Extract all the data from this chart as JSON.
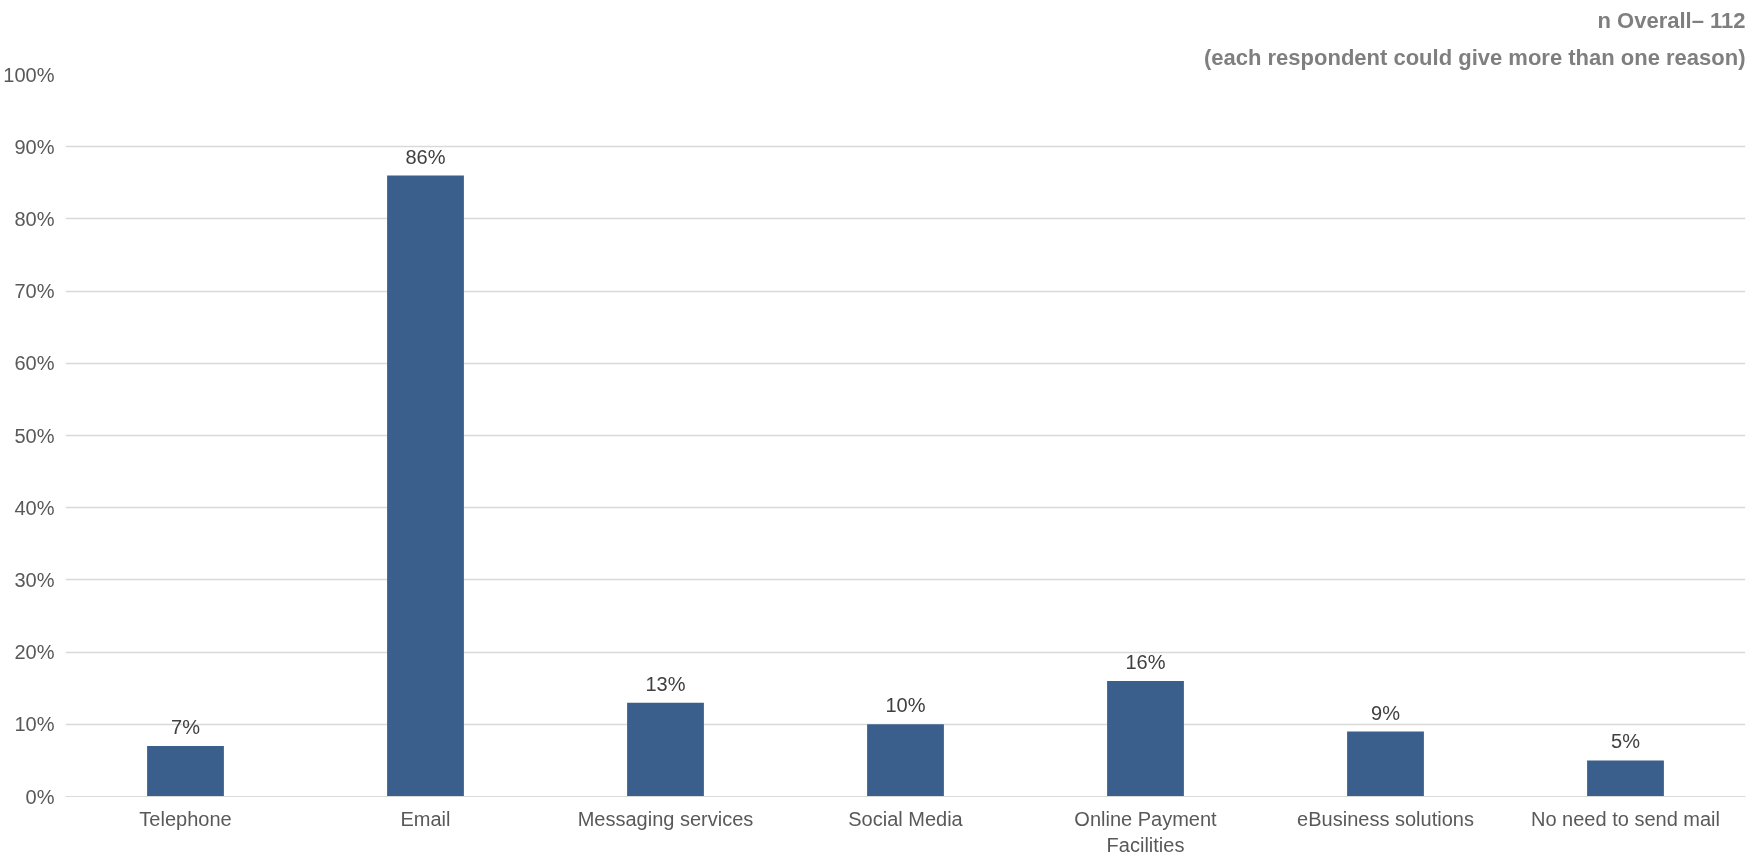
{
  "chart_data": {
    "type": "bar",
    "annotations": [
      "n Overall– 112",
      "(each respondent could give more than one reason)"
    ],
    "categories": [
      "Telephone",
      "Email",
      "Messaging services",
      "Social Media",
      "Online Payment Facilities",
      "eBusiness solutions",
      "No need to send mail"
    ],
    "values": [
      7,
      86,
      13,
      10,
      16,
      9,
      5
    ],
    "color": "#3a5f8c",
    "ylim": [
      0,
      100
    ],
    "yticks": [
      {
        "value": 0,
        "label": "0%"
      },
      {
        "value": 10,
        "label": "10%"
      },
      {
        "value": 20,
        "label": "20%"
      },
      {
        "value": 30,
        "label": "30%"
      },
      {
        "value": 40,
        "label": "40%"
      },
      {
        "value": 50,
        "label": "50%"
      },
      {
        "value": 60,
        "label": "60%"
      },
      {
        "value": 70,
        "label": "70%"
      },
      {
        "value": 80,
        "label": "80%"
      },
      {
        "value": 90,
        "label": "90%"
      },
      {
        "value": 100,
        "label": "100%"
      }
    ],
    "grid": "y",
    "value_labels": [
      "7%",
      "86%",
      "13%",
      "10%",
      "16%",
      "9%",
      "5%"
    ]
  }
}
